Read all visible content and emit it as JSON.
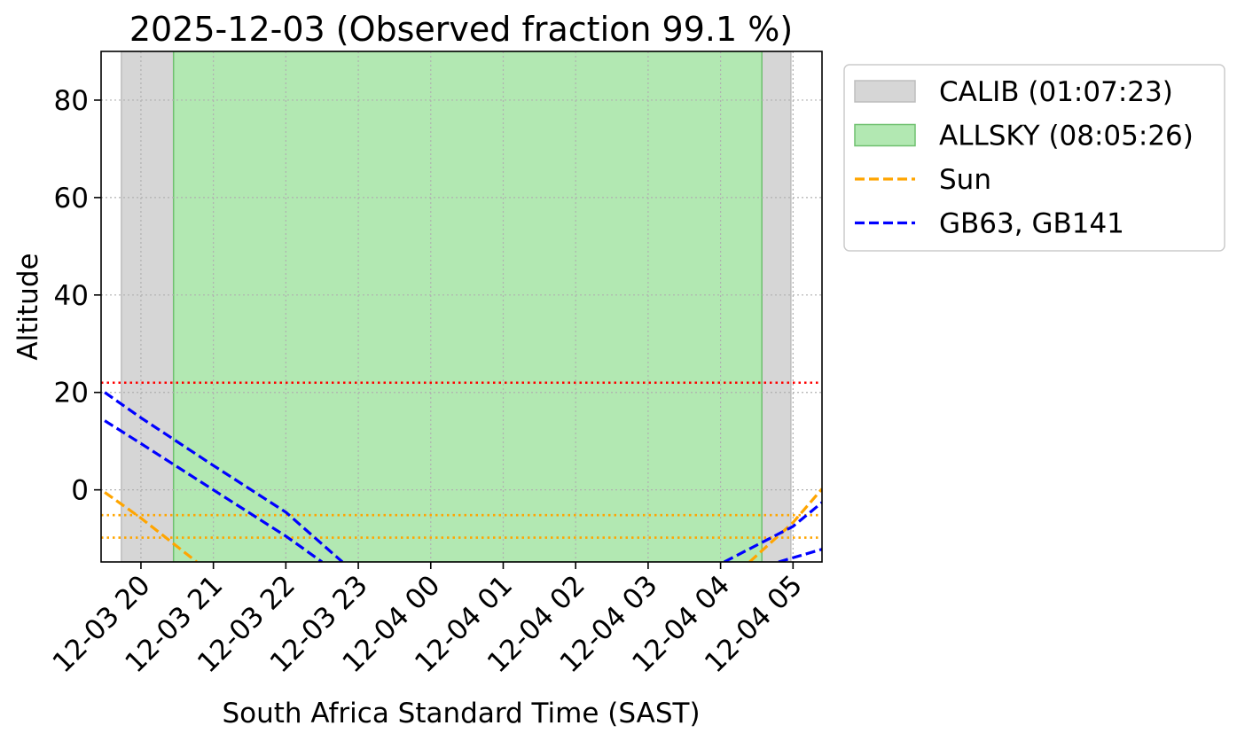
{
  "chart_data": {
    "type": "line",
    "title": "2025-12-03 (Observed fraction 99.1 %)",
    "xlabel": "South Africa Standard Time (SAST)",
    "ylabel": "Altitude",
    "x_unit": "hours after 2025-12-03 20:00 SAST",
    "xlim": [
      -0.55,
      9.4
    ],
    "ylim": [
      -14.8,
      90
    ],
    "x_ticks": [
      {
        "x": 0,
        "label": "12-03 20"
      },
      {
        "x": 1,
        "label": "12-03 21"
      },
      {
        "x": 2,
        "label": "12-03 22"
      },
      {
        "x": 3,
        "label": "12-03 23"
      },
      {
        "x": 4,
        "label": "12-04 00"
      },
      {
        "x": 5,
        "label": "12-04 01"
      },
      {
        "x": 6,
        "label": "12-04 02"
      },
      {
        "x": 7,
        "label": "12-04 03"
      },
      {
        "x": 8,
        "label": "12-04 04"
      },
      {
        "x": 9,
        "label": "12-04 05"
      }
    ],
    "y_ticks": [
      {
        "y": 0,
        "label": "0"
      },
      {
        "y": 20,
        "label": "20"
      },
      {
        "y": 40,
        "label": "40"
      },
      {
        "y": 60,
        "label": "60"
      },
      {
        "y": 80,
        "label": "80"
      }
    ],
    "grid": true,
    "legend_position": "outside-right-top",
    "spans": [
      {
        "name": "CALIB (01:07:23)",
        "label": "CALIB (01:07:23)",
        "x0": -0.27,
        "x1": 0.45,
        "color": "#d6d6d6",
        "edge": "#bdbdbd"
      },
      {
        "name": "CALIB (01:07:23)",
        "label": "",
        "x0": 8.57,
        "x1": 8.97,
        "color": "#d6d6d6",
        "edge": "#bdbdbd"
      },
      {
        "name": "ALLSKY (08:05:26)",
        "label": "ALLSKY (08:05:26)",
        "x0": 0.45,
        "x1": 8.57,
        "color": "#b2e8b2",
        "edge": "#6fc06f"
      }
    ],
    "hlines": [
      {
        "y": 22,
        "color": "#ff0000",
        "style": "dotted"
      },
      {
        "y": -5.2,
        "color": "#ffa500",
        "style": "dotted"
      },
      {
        "y": -9.8,
        "color": "#ffa500",
        "style": "dotted"
      }
    ],
    "series": [
      {
        "name": "Sun",
        "color": "#ffa500",
        "style": "dashed",
        "segments": [
          [
            [
              -0.5,
              -0.5
            ],
            [
              0.0,
              -5.8
            ],
            [
              0.3,
              -9.3
            ],
            [
              0.77,
              -14.8
            ]
          ],
          [
            [
              8.4,
              -14.8
            ],
            [
              9.0,
              -6.7
            ],
            [
              9.4,
              0.2
            ]
          ]
        ]
      },
      {
        "name": "GB63, GB141",
        "color": "#0000ff",
        "style": "dashed",
        "segments": [
          [
            [
              -0.5,
              20.0
            ],
            [
              0.0,
              14.8
            ],
            [
              1.0,
              5.0
            ],
            [
              2.0,
              -4.6
            ],
            [
              2.78,
              -14.8
            ]
          ],
          [
            [
              -0.5,
              14.2
            ],
            [
              0.0,
              9.5
            ],
            [
              1.0,
              0.0
            ],
            [
              2.0,
              -9.5
            ],
            [
              2.5,
              -14.8
            ]
          ],
          [
            [
              8.05,
              -14.8
            ],
            [
              9.0,
              -7.5
            ],
            [
              9.4,
              -2.6
            ]
          ],
          [
            [
              8.8,
              -14.8
            ],
            [
              9.4,
              -12.2
            ]
          ]
        ]
      }
    ],
    "legend": [
      {
        "label": "CALIB (01:07:23)",
        "kind": "patch",
        "color": "#d6d6d6",
        "edge": "#bdbdbd"
      },
      {
        "label": "ALLSKY (08:05:26)",
        "kind": "patch",
        "color": "#b2e8b2",
        "edge": "#6fc06f"
      },
      {
        "label": "Sun",
        "kind": "line",
        "color": "#ffa500"
      },
      {
        "label": "GB63, GB141",
        "kind": "line",
        "color": "#0000ff"
      }
    ]
  }
}
